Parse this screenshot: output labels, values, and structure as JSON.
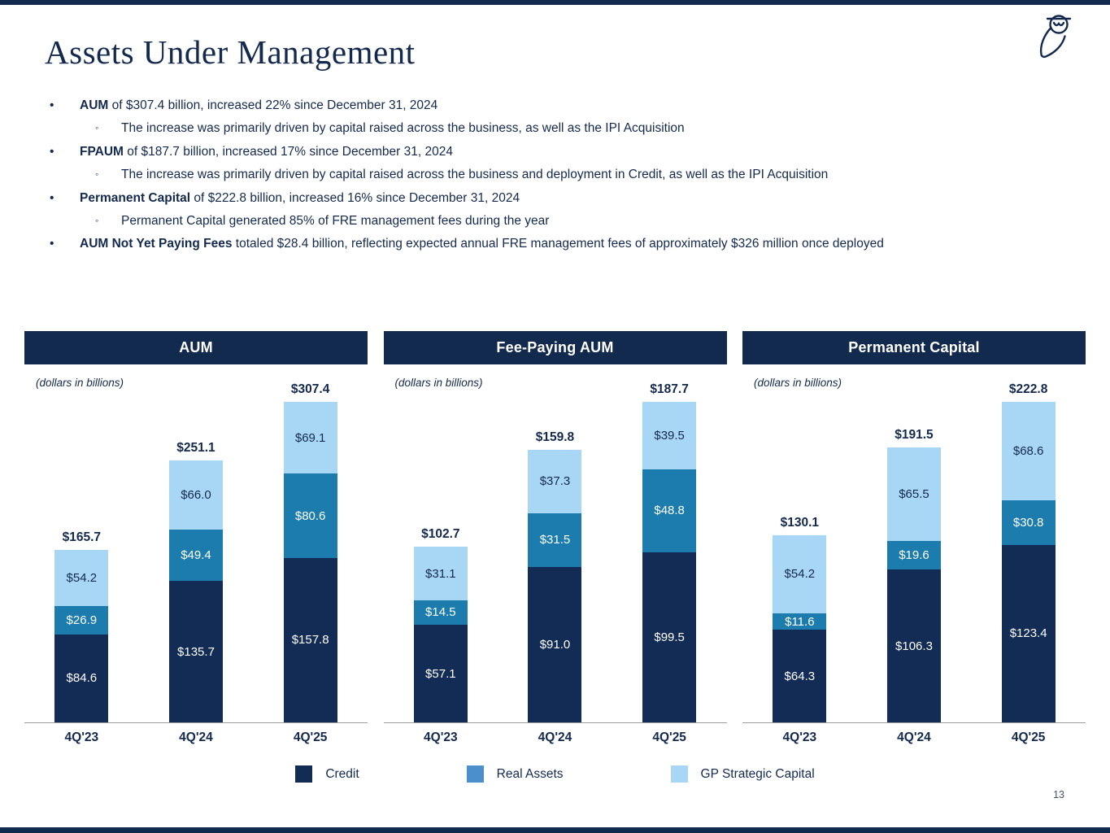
{
  "slide": {
    "title": "Assets Under Management",
    "page_number": "13",
    "logo_icon": "owl-logo"
  },
  "markers": {
    "level1": "•",
    "level2": "◦"
  },
  "bullets": [
    {
      "lead": "AUM",
      "rest": " of $307.4 billion, increased 22% since December 31, 2024",
      "sub": [
        "The increase was primarily driven by capital raised across the business, as well as the IPI Acquisition"
      ]
    },
    {
      "lead": "FPAUM",
      "rest": " of $187.7 billion, increased 17% since December 31, 2024",
      "sub": [
        "The increase was primarily driven by capital raised across the business and deployment in Credit, as well as the IPI Acquisition"
      ]
    },
    {
      "lead": "Permanent Capital",
      "rest": " of $222.8 billion, increased 16% since December 31, 2024",
      "sub": [
        "Permanent Capital generated 85% of FRE management fees during the year"
      ]
    },
    {
      "lead": "AUM Not Yet Paying Fees",
      "rest": " totaled $28.4 billion, reflecting expected annual FRE management fees of approximately $326 million once deployed",
      "sub": []
    }
  ],
  "colors": {
    "navy_text": "#14294E",
    "header_navy": "#122A4D",
    "credit": "#132C55",
    "real_assets": "#1B7CAD",
    "gp_strategic": "#A8D7F6",
    "legend_real_assets": "#4B90CC",
    "axis_gray": "#9C9C9C",
    "page_number_gray": "#44546A"
  },
  "legend": {
    "items": [
      {
        "label": "Credit",
        "color_key": "credit"
      },
      {
        "label": "Real Assets",
        "color_key": "legend_real_assets"
      },
      {
        "label": "GP Strategic Capital",
        "color_key": "gp_strategic"
      }
    ]
  },
  "chart_data": [
    {
      "type": "bar",
      "stacked": true,
      "title": "AUM",
      "units_note": "(dollars in billions)",
      "categories": [
        "4Q'23",
        "4Q'24",
        "4Q'25"
      ],
      "color_keys": [
        "credit",
        "real_assets",
        "gp_strategic"
      ],
      "series": [
        {
          "name": "Credit",
          "values": [
            84.6,
            135.7,
            157.8
          ]
        },
        {
          "name": "Real Assets",
          "values": [
            26.9,
            49.4,
            80.6
          ]
        },
        {
          "name": "GP Strategic Capital",
          "values": [
            54.2,
            66.0,
            69.1
          ]
        }
      ],
      "totals": [
        165.7,
        251.1,
        307.4
      ],
      "legend_position": "bottom",
      "grid": false
    },
    {
      "type": "bar",
      "stacked": true,
      "title": "Fee-Paying AUM",
      "units_note": "(dollars in billions)",
      "categories": [
        "4Q'23",
        "4Q'24",
        "4Q'25"
      ],
      "color_keys": [
        "credit",
        "real_assets",
        "gp_strategic"
      ],
      "series": [
        {
          "name": "Credit",
          "values": [
            57.1,
            91.0,
            99.5
          ]
        },
        {
          "name": "Real Assets",
          "values": [
            14.5,
            31.5,
            48.8
          ]
        },
        {
          "name": "GP Strategic Capital",
          "values": [
            31.1,
            37.3,
            39.5
          ]
        }
      ],
      "totals": [
        102.7,
        159.8,
        187.7
      ],
      "legend_position": "bottom",
      "grid": false
    },
    {
      "type": "bar",
      "stacked": true,
      "title": "Permanent Capital",
      "units_note": "(dollars in billions)",
      "categories": [
        "4Q'23",
        "4Q'24",
        "4Q'25"
      ],
      "color_keys": [
        "credit",
        "real_assets",
        "gp_strategic"
      ],
      "series": [
        {
          "name": "Credit",
          "values": [
            64.3,
            106.3,
            123.4
          ]
        },
        {
          "name": "Real Assets",
          "values": [
            11.6,
            19.6,
            30.8
          ]
        },
        {
          "name": "GP Strategic Capital",
          "values": [
            54.2,
            65.5,
            68.6
          ]
        }
      ],
      "totals": [
        130.1,
        191.5,
        222.8
      ],
      "legend_position": "bottom",
      "grid": false
    }
  ]
}
